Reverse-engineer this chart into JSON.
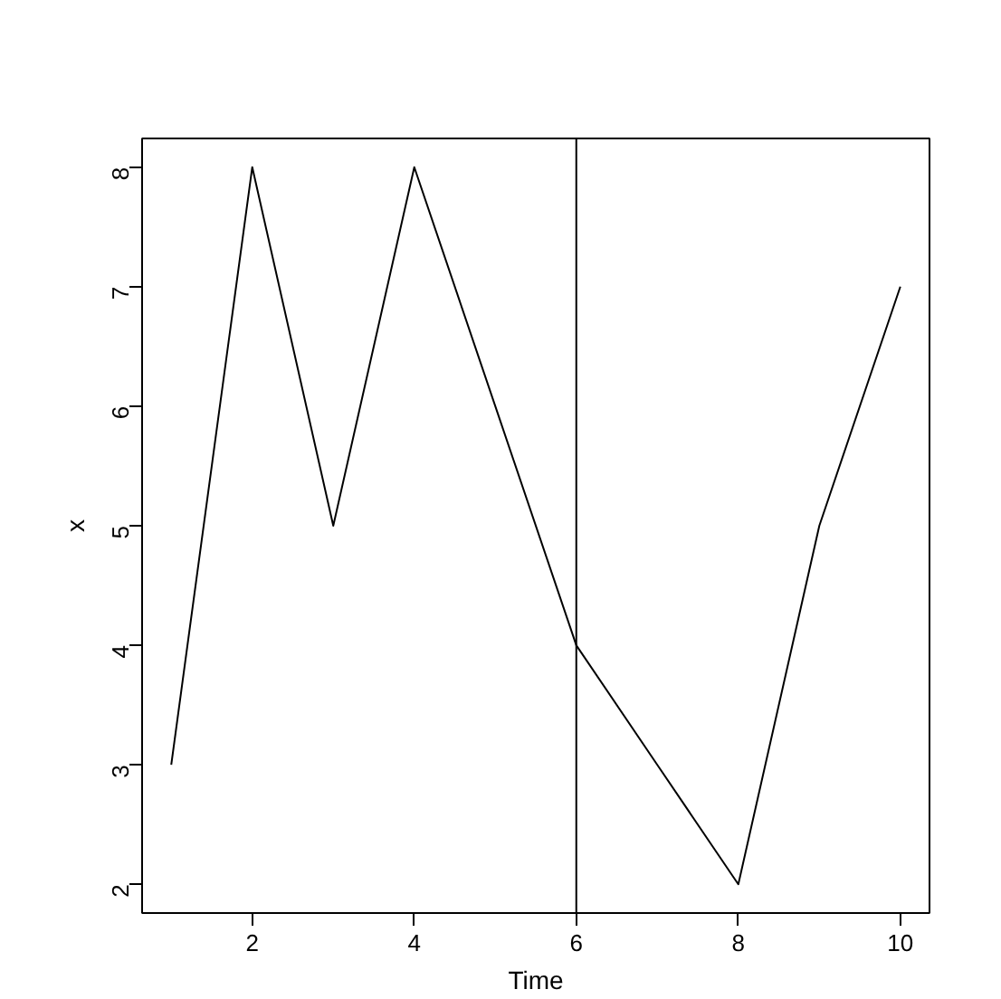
{
  "chart_data": {
    "type": "line",
    "xlabel": "Time",
    "ylabel": "x",
    "x": [
      1,
      2,
      3,
      4,
      5,
      6,
      7,
      8,
      9,
      10
    ],
    "series": [
      {
        "color": "#000000",
        "values": [
          3,
          8,
          5,
          8,
          6,
          4,
          3,
          2,
          5,
          7
        ]
      }
    ],
    "xlim": [
      0.64,
      10.36
    ],
    "ylim": [
      1.76,
      8.24
    ],
    "xticks": [
      2,
      4,
      6,
      8,
      10
    ],
    "yticks": [
      2,
      3,
      4,
      5,
      6,
      7,
      8
    ],
    "ref_lines": [
      {
        "axis": "x",
        "value": 6,
        "color": "#000000"
      }
    ],
    "grid": false,
    "marker": "none",
    "line_style": "solid"
  }
}
